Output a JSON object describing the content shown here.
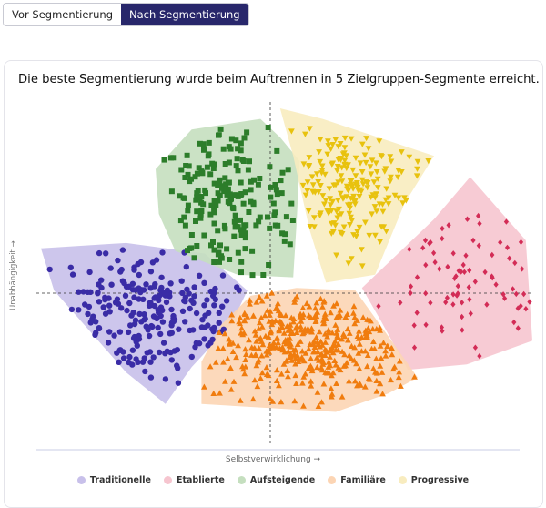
{
  "toggle": {
    "before_label": "Vor Segmentierung",
    "after_label": "Nach Segmentierung",
    "active": "after"
  },
  "headline": "Die beste Segmentierung wurde beim Auftrennen in 5 Zielgruppen-Segmente erreicht.",
  "chart_data": {
    "type": "scatter",
    "xlabel": "Selbstverwirklichung →",
    "ylabel": "Unabhängigkeit →",
    "grid": false,
    "legend_position": "bottom-center",
    "series": [
      {
        "name": "Traditionelle",
        "marker": "circle",
        "point_color": "#3a2ca6",
        "hull_color": "#c8c0ea",
        "center": [
          -1.9,
          -0.5
        ],
        "spread": [
          0.95,
          0.65
        ],
        "count": 230,
        "hull": [
          [
            -3.5,
            0.85
          ],
          [
            -2.2,
            0.95
          ],
          [
            -1.0,
            0.75
          ],
          [
            -0.35,
            0.05
          ],
          [
            -0.6,
            -0.6
          ],
          [
            -1.2,
            -1.4
          ],
          [
            -1.6,
            -2.1
          ],
          [
            -2.2,
            -1.5
          ],
          [
            -3.3,
            0.05
          ]
        ]
      },
      {
        "name": "Etablierte",
        "marker": "diamond",
        "point_color": "#d32c56",
        "hull_color": "#f6c5cf",
        "center": [
          3.0,
          0.3
        ],
        "spread": [
          0.85,
          0.9
        ],
        "count": 80,
        "hull": [
          [
            3.05,
            2.2
          ],
          [
            3.9,
            1.0
          ],
          [
            4.0,
            -0.9
          ],
          [
            3.0,
            -1.35
          ],
          [
            2.1,
            -1.45
          ],
          [
            1.7,
            -0.55
          ],
          [
            1.4,
            0.1
          ],
          [
            2.5,
            1.4
          ]
        ]
      },
      {
        "name": "Aufsteigende",
        "marker": "square",
        "point_color": "#2c7d2a",
        "hull_color": "#c5dfbf",
        "center": [
          -0.7,
          1.7
        ],
        "spread": [
          0.6,
          0.75
        ],
        "count": 200,
        "hull": [
          [
            -1.2,
            3.1
          ],
          [
            -0.15,
            3.3
          ],
          [
            0.15,
            2.95
          ],
          [
            0.45,
            2.5
          ],
          [
            0.4,
            1.3
          ],
          [
            0.35,
            0.3
          ],
          [
            -0.5,
            0.35
          ],
          [
            -1.45,
            0.8
          ],
          [
            -1.7,
            1.5
          ],
          [
            -1.75,
            2.35
          ]
        ]
      },
      {
        "name": "Familiäre",
        "marker": "triangle-up",
        "point_color": "#f07c0e",
        "hull_color": "#fcd5b4",
        "center": [
          0.6,
          -0.95
        ],
        "spread": [
          0.95,
          0.5
        ],
        "count": 420,
        "hull": [
          [
            -0.75,
            -0.6
          ],
          [
            -0.3,
            -0.05
          ],
          [
            0.4,
            0.1
          ],
          [
            1.3,
            0.05
          ],
          [
            1.85,
            -0.9
          ],
          [
            2.25,
            -1.6
          ],
          [
            1.8,
            -1.9
          ],
          [
            1.0,
            -2.25
          ],
          [
            -1.05,
            -2.1
          ],
          [
            -1.05,
            -1.3
          ]
        ]
      },
      {
        "name": "Progressive",
        "marker": "triangle-down",
        "point_color": "#e8c20e",
        "hull_color": "#f8ecbf",
        "center": [
          1.2,
          2.0
        ],
        "spread": [
          0.55,
          0.6
        ],
        "count": 200,
        "hull": [
          [
            0.15,
            3.5
          ],
          [
            0.8,
            3.3
          ],
          [
            2.5,
            2.6
          ],
          [
            2.05,
            1.7
          ],
          [
            1.6,
            0.35
          ],
          [
            0.85,
            0.2
          ],
          [
            0.6,
            1.2
          ],
          [
            0.35,
            2.6
          ]
        ]
      }
    ]
  },
  "colors": {
    "accent": "#28276b"
  }
}
